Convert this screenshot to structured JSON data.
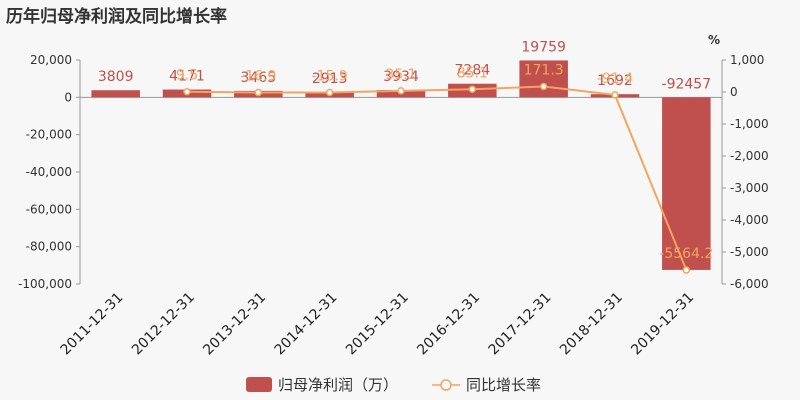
{
  "title": "历年归母净利润及同比增长率",
  "chart_data": {
    "type": "bar+line",
    "categories": [
      "2011-12-31",
      "2012-12-31",
      "2013-12-31",
      "2014-12-31",
      "2015-12-31",
      "2016-12-31",
      "2017-12-31",
      "2018-12-31",
      "2019-12-31"
    ],
    "series": [
      {
        "name": "归母净利润（万）",
        "type": "bar",
        "axis": "left",
        "color": "#c0504d",
        "values": [
          3809,
          4171,
          3465,
          2913,
          3934,
          7284,
          19759,
          1692,
          -92457
        ],
        "labels": [
          "3809",
          "4171",
          "3465",
          "2913",
          "3934",
          "7284",
          "19759",
          "1692",
          "-92457"
        ]
      },
      {
        "name": "同比增长率",
        "type": "line",
        "axis": "right",
        "color": "#f4a460",
        "values": [
          null,
          9.5,
          -16.9,
          -15.9,
          35.1,
          85.1,
          171.3,
          -91.4,
          -5564.2
        ],
        "labels": [
          "",
          "9.5",
          "-16.9",
          "-15.9",
          "35.1",
          "85.1",
          "171.3",
          "-91.4",
          "-5564.2"
        ]
      }
    ],
    "left_axis": {
      "ticks": [
        20000,
        0,
        -20000,
        -40000,
        -60000,
        -80000,
        -100000
      ],
      "tick_labels": [
        "20,000",
        "0",
        "-20,000",
        "-40,000",
        "-60,000",
        "-80,000",
        "-100,000"
      ],
      "ylim": [
        -100000,
        20000
      ]
    },
    "right_axis": {
      "unit": "%",
      "ticks": [
        1000,
        0,
        -1000,
        -2000,
        -3000,
        -4000,
        -5000,
        -6000
      ],
      "tick_labels": [
        "1,000",
        "0",
        "-1,000",
        "-2,000",
        "-3,000",
        "-4,000",
        "-5,000",
        "-6,000"
      ],
      "ylim": [
        -6000,
        1000
      ]
    },
    "legend_position": "bottom"
  }
}
